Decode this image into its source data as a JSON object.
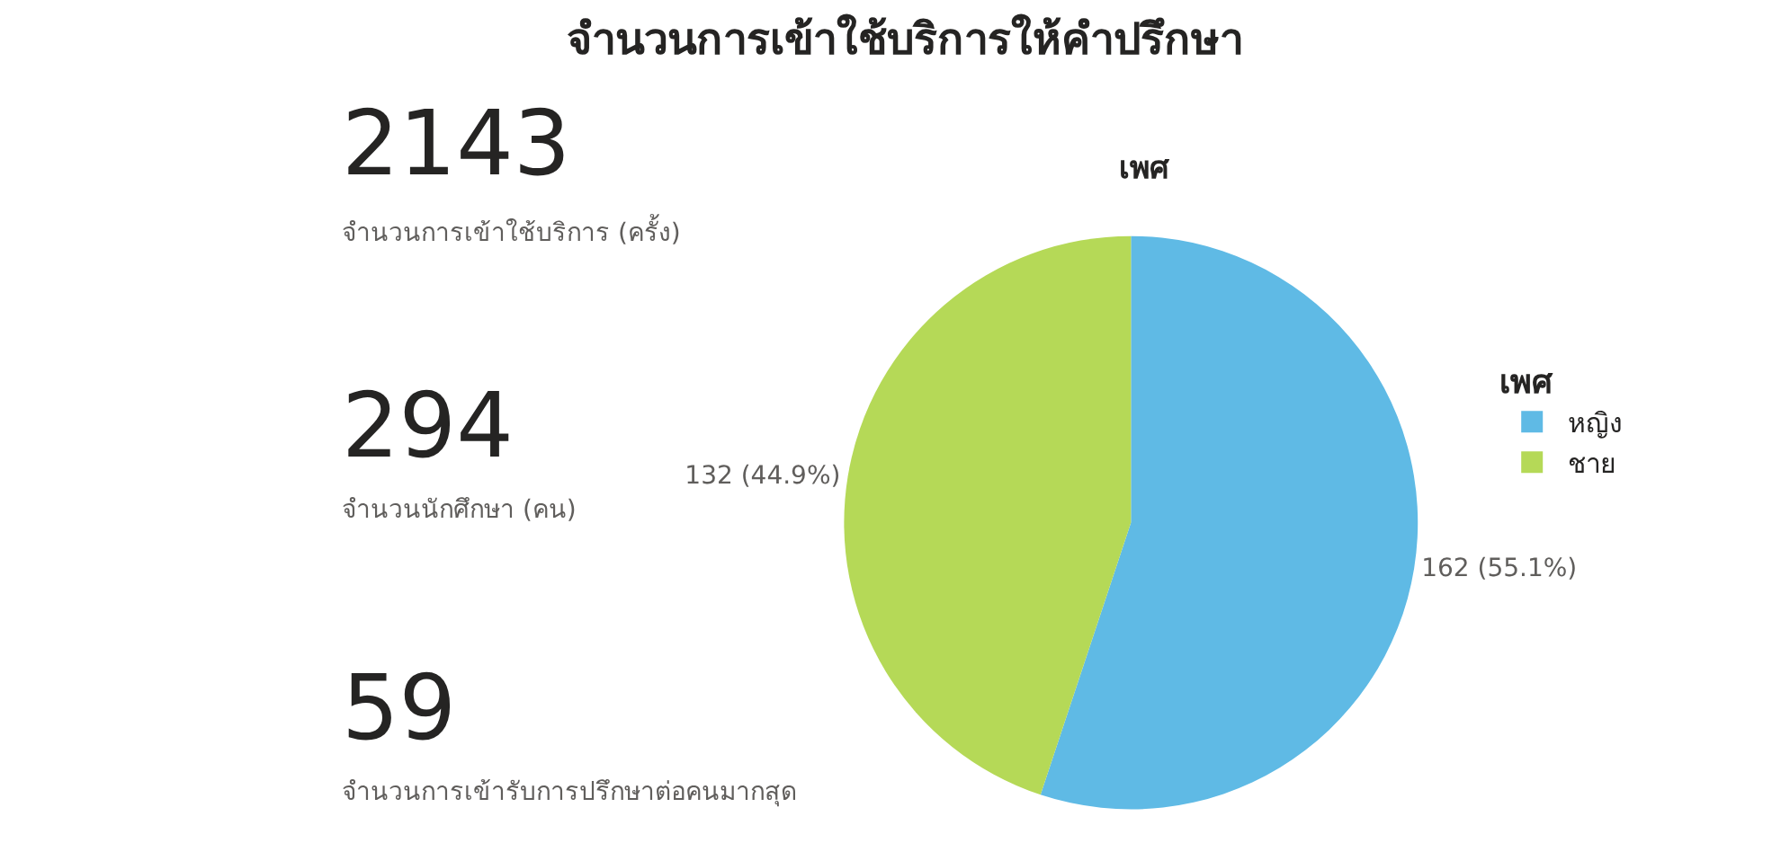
{
  "chart_data": [
    {
      "type": "other",
      "annotations": [
        "2143",
        "จำนวนการเข้าใช้บริการ (ครั้ง)",
        "294",
        "จำนวนนักศึกษา (คน)",
        "59",
        "จำนวนการเข้ารับการปรึกษาต่อคนมากสุด"
      ]
    },
    {
      "type": "pie",
      "title": "จำนวนการเข้าใช้บริการให้คำปรึกษา",
      "subtitle": "เพศ",
      "legend_title": "เพศ",
      "legend": "right",
      "categories": [
        "หญิง",
        "ชาย"
      ],
      "values": [
        162,
        132
      ],
      "colors": [
        "#5fbae5",
        "#b5d957"
      ],
      "value_labels": [
        "162 (55.1%)",
        "132 (44.9%)"
      ]
    }
  ]
}
